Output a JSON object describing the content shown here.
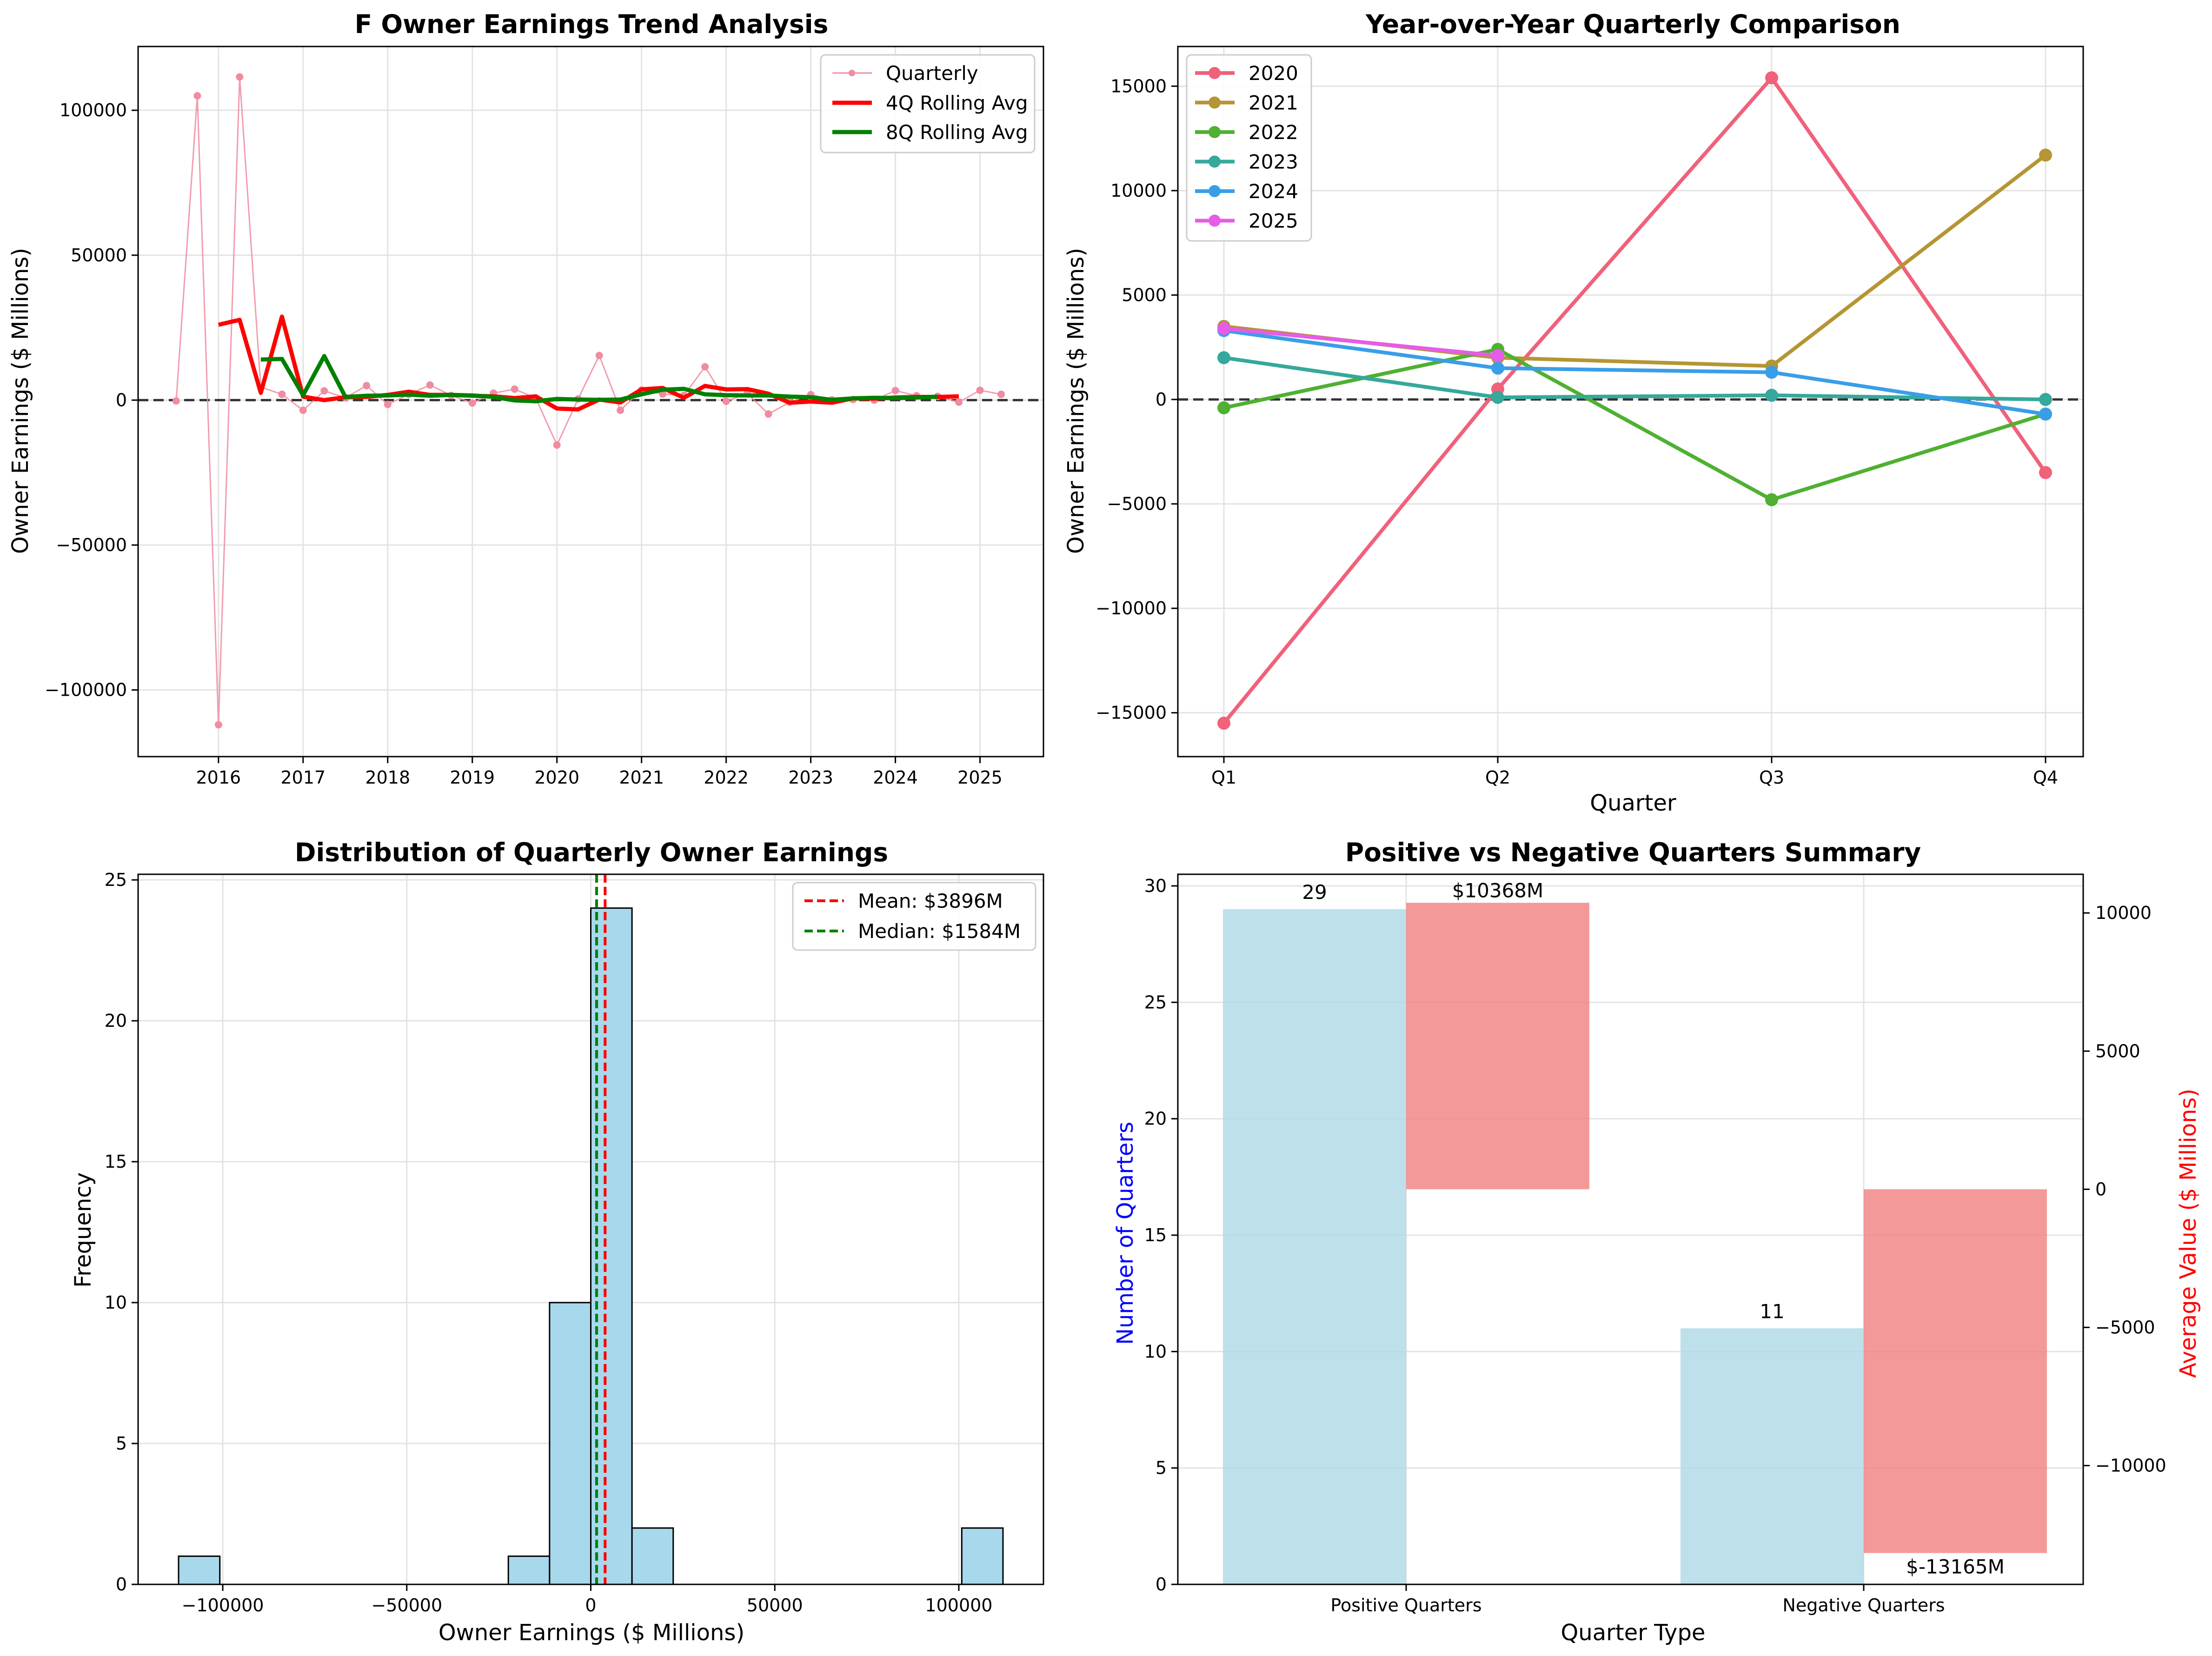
{
  "chart_data": [
    {
      "type": "line",
      "title": "F Owner Earnings Trend Analysis",
      "xlabel": "",
      "ylabel": "Owner Earnings ($ Millions)",
      "x_ticks": [
        "2016",
        "2017",
        "2018",
        "2019",
        "2020",
        "2021",
        "2022",
        "2023",
        "2024",
        "2025"
      ],
      "y_ticks": [
        -100000,
        -50000,
        0,
        50000,
        100000
      ],
      "ylim": [
        -123000,
        122000
      ],
      "xlim": [
        2015.05,
        2025.75
      ],
      "zero_line": true,
      "grid": true,
      "legend_position": "upper right",
      "colors": {
        "Quarterly": "#f08ca0",
        "4Q Rolling Avg": "#ff0000",
        "8Q Rolling Avg": "#008000"
      },
      "series": [
        {
          "name": "Quarterly",
          "x": [
            2015.5,
            2015.75,
            2016.0,
            2016.25,
            2016.5,
            2016.75,
            2017.0,
            2017.25,
            2017.5,
            2017.75,
            2018.0,
            2018.25,
            2018.5,
            2018.75,
            2019.0,
            2019.25,
            2019.5,
            2019.75,
            2020.0,
            2020.25,
            2020.5,
            2020.75,
            2021.0,
            2021.25,
            2021.5,
            2021.75,
            2022.0,
            2022.25,
            2022.5,
            2022.75,
            2023.0,
            2023.25,
            2023.5,
            2023.75,
            2024.0,
            2024.25,
            2024.5,
            2024.75,
            2025.0,
            2025.25
          ],
          "values": [
            -300,
            105000,
            -112000,
            111500,
            4500,
            2000,
            -3500,
            3200,
            800,
            5000,
            -1500,
            2000,
            5200,
            1600,
            -1000,
            2400,
            3800,
            700,
            -15500,
            400,
            15400,
            -3500,
            3500,
            2100,
            1600,
            11500,
            -400,
            2300,
            -4800,
            -700,
            1900,
            100,
            200,
            0,
            3300,
            1500,
            1300,
            -700,
            3400,
            2000
          ]
        },
        {
          "name": "4Q Rolling Avg",
          "x": [
            2016.0,
            2016.25,
            2016.5,
            2016.75,
            2017.0,
            2017.25,
            2017.5,
            2017.75,
            2018.0,
            2018.25,
            2018.5,
            2018.75,
            2019.0,
            2019.25,
            2019.5,
            2019.75,
            2020.0,
            2020.25,
            2020.5,
            2020.75,
            2021.0,
            2021.25,
            2021.5,
            2021.75,
            2022.0,
            2022.25,
            2022.5,
            2022.75,
            2023.0,
            2023.25,
            2023.5,
            2023.75,
            2024.0,
            2024.25,
            2024.5,
            2024.75
          ],
          "values": [
            26000,
            27700,
            2500,
            28800,
            1200,
            0,
            1000,
            1100,
            1800,
            2900,
            1800,
            1800,
            1500,
            1300,
            700,
            1300,
            -2900,
            -3200,
            200,
            -800,
            3700,
            4200,
            800,
            4900,
            3700,
            3800,
            2200,
            -900,
            -500,
            -900,
            600,
            500,
            900,
            1100,
            1100,
            1300
          ]
        },
        {
          "name": "8Q Rolling Avg",
          "x": [
            2016.5,
            2016.75,
            2017.0,
            2017.25,
            2017.5,
            2017.75,
            2018.0,
            2018.25,
            2018.5,
            2018.75,
            2019.0,
            2019.25,
            2019.5,
            2019.75,
            2020.0,
            2020.25,
            2020.5,
            2020.75,
            2021.0,
            2021.25,
            2021.5,
            2021.75,
            2022.0,
            2022.25,
            2022.5,
            2022.75,
            2023.0,
            2023.25,
            2023.5,
            2023.75,
            2024.0,
            2024.25,
            2024.5
          ],
          "values": [
            14000,
            14200,
            1700,
            15200,
            1100,
            1500,
            1600,
            1900,
            1500,
            1800,
            1600,
            1100,
            -100,
            -400,
            400,
            200,
            100,
            200,
            2000,
            3600,
            3900,
            2000,
            1700,
            1600,
            1600,
            1200,
            1000,
            100,
            600,
            800,
            700,
            900,
            1200
          ]
        }
      ]
    },
    {
      "type": "line",
      "title": "Year-over-Year Quarterly Comparison",
      "xlabel": "Quarter",
      "ylabel": "Owner Earnings ($ Millions)",
      "categories": [
        "Q1",
        "Q2",
        "Q3",
        "Q4"
      ],
      "y_ticks": [
        -15000,
        -10000,
        -5000,
        0,
        5000,
        10000,
        15000
      ],
      "ylim": [
        -17100,
        16900
      ],
      "zero_line": true,
      "grid": true,
      "legend_position": "upper left",
      "series": [
        {
          "name": "2020",
          "color": "#f0617a",
          "values": [
            -15500,
            500,
            15400,
            -3500
          ]
        },
        {
          "name": "2021",
          "color": "#b59534",
          "values": [
            3500,
            2000,
            1600,
            11700
          ]
        },
        {
          "name": "2022",
          "color": "#4fb031",
          "values": [
            -400,
            2400,
            -4800,
            -700
          ]
        },
        {
          "name": "2023",
          "color": "#36a89c",
          "values": [
            2000,
            100,
            200,
            0
          ]
        },
        {
          "name": "2024",
          "color": "#399ee8",
          "values": [
            3300,
            1500,
            1300,
            -700
          ]
        },
        {
          "name": "2025",
          "color": "#e55ce8",
          "values": [
            3400,
            2100,
            null,
            null
          ]
        }
      ]
    },
    {
      "type": "bar",
      "subtype": "histogram",
      "title": "Distribution of Quarterly Owner Earnings",
      "xlabel": "Owner Earnings ($ Millions)",
      "ylabel": "Frequency",
      "x_ticks": [
        -100000,
        -50000,
        0,
        50000,
        100000
      ],
      "y_ticks": [
        0,
        5,
        10,
        15,
        20,
        25
      ],
      "xlim": [
        -123000,
        123000
      ],
      "ylim": [
        0,
        25.2
      ],
      "bar_color": "#a8d8ec",
      "bins": [
        {
          "start": -112000,
          "end": -100800,
          "count": 1
        },
        {
          "start": -22400,
          "end": -11200,
          "count": 1
        },
        {
          "start": -11200,
          "end": 0,
          "count": 10
        },
        {
          "start": 0,
          "end": 11200,
          "count": 24
        },
        {
          "start": 11200,
          "end": 22400,
          "count": 2
        },
        {
          "start": 100800,
          "end": 112000,
          "count": 2
        }
      ],
      "mean": 3896,
      "median": 1584,
      "mean_label": "Mean: $3896M",
      "median_label": "Median: $1584M",
      "grid": true,
      "legend_position": "upper right"
    },
    {
      "type": "bar",
      "subtype": "dual-axis",
      "title": "Positive vs Negative Quarters Summary",
      "xlabel": "Quarter Type",
      "ylabel_left": "Number of Quarters",
      "ylabel_right": "Average Value ($ Millions)",
      "categories": [
        "Positive Quarters",
        "Negative Quarters"
      ],
      "counts": [
        29,
        11
      ],
      "count_labels": [
        "29",
        "11"
      ],
      "averages": [
        10368,
        -13165
      ],
      "average_labels": [
        "$10368M",
        "$-13165M"
      ],
      "left_ticks": [
        0,
        5,
        10,
        15,
        20,
        25,
        30
      ],
      "right_ticks": [
        -10000,
        -5000,
        0,
        5000,
        10000
      ],
      "ylim_left": [
        0,
        30.5
      ],
      "ylim_right": [
        -14300,
        11400
      ],
      "count_color": "#add8e6",
      "average_color": "#f08080",
      "left_label_color": "#0000ff",
      "right_label_color": "#ff0000",
      "grid": true
    }
  ]
}
